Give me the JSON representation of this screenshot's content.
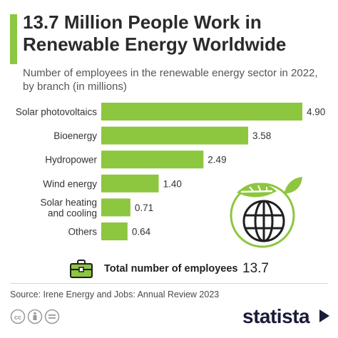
{
  "header": {
    "title": "13.7 Million People Work in Renewable Energy Worldwide",
    "subtitle": "Number of employees in the renewable energy sector in 2022, by branch (in millions)"
  },
  "chart_data": {
    "type": "bar",
    "orientation": "horizontal",
    "categories": [
      "Solar photovoltaics",
      "Bioenergy",
      "Hydropower",
      "Wind energy",
      "Solar heating and cooling",
      "Others"
    ],
    "category_lines": [
      [
        "Solar photovoltaics"
      ],
      [
        "Bioenergy"
      ],
      [
        "Hydropower"
      ],
      [
        "Wind energy"
      ],
      [
        "Solar heating",
        "and cooling"
      ],
      [
        "Others"
      ]
    ],
    "values": [
      4.9,
      3.58,
      2.49,
      1.4,
      0.71,
      0.64
    ],
    "value_labels": [
      "4.90",
      "3.58",
      "2.49",
      "1.40",
      "0.71",
      "0.64"
    ],
    "xlim": [
      0,
      4.9
    ],
    "bar_color": "#8dc63f",
    "grid": false,
    "legend": "none"
  },
  "total": {
    "label": "Total number of employees",
    "value": "13.7"
  },
  "footer": {
    "source": "Source: Irene Energy and Jobs: Annual Review 2023",
    "brand": "statista"
  },
  "icons": {
    "briefcase": "briefcase-icon",
    "globe": "globe-leaf-icon",
    "license": "creative-commons-icons",
    "brand_mark": "statista-arrow-icon"
  },
  "colors": {
    "accent": "#8dc63f",
    "brand": "#1b1b3a"
  }
}
